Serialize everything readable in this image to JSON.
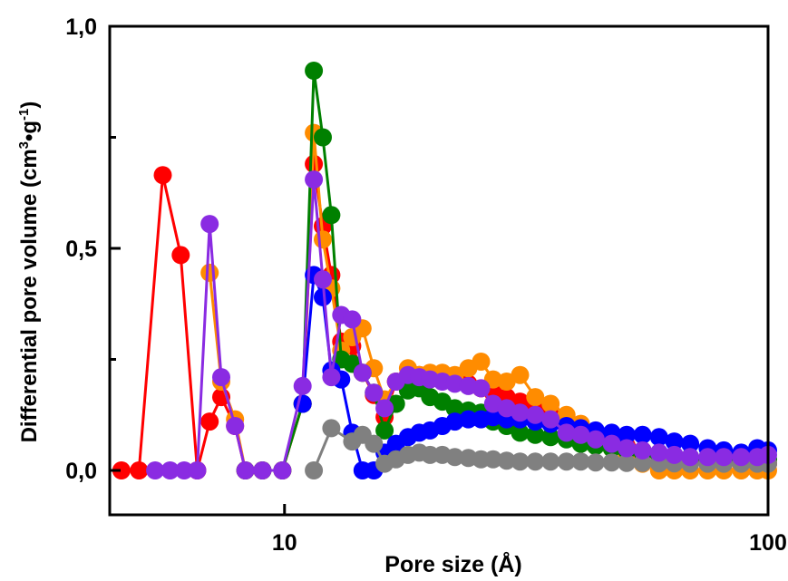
{
  "chart_data": {
    "type": "line",
    "title": "",
    "xlabel": "Pore size (Å)",
    "ylabel_parts": {
      "pre": "Differential pore volume (cm",
      "sup1": "3",
      "mid": "•g",
      "sup2": "-1",
      "post": ")"
    },
    "x_scale": "log",
    "xlim": [
      4.35,
      100
    ],
    "ylim": [
      -0.1,
      1.0
    ],
    "x_ticks": [
      {
        "value": 10,
        "label": "10"
      },
      {
        "value": 100,
        "label": "100"
      }
    ],
    "y_ticks": [
      {
        "value": 0.0,
        "label": "0,0"
      },
      {
        "value": 0.5,
        "label": "0,5"
      },
      {
        "value": 1.0,
        "label": "1,0"
      }
    ],
    "y_minor_ticks": [
      0.25,
      0.75
    ],
    "grid": false,
    "legend": "none",
    "series": [
      {
        "color": "#ff0000",
        "points": [
          [
            4.6,
            0
          ],
          [
            5.0,
            0
          ],
          [
            5.6,
            0.665
          ],
          [
            6.1,
            0.485
          ],
          [
            6.6,
            0
          ],
          [
            7.0,
            0.11
          ],
          [
            7.4,
            0.165
          ],
          [
            7.9,
            0.1
          ],
          [
            8.3,
            0
          ],
          [
            9.0,
            0
          ],
          [
            9.9,
            0
          ],
          [
            10.9,
            0.15
          ],
          [
            11.5,
            0.69
          ],
          [
            12.0,
            0.55
          ],
          [
            12.5,
            0.44
          ],
          [
            13.1,
            0.29
          ],
          [
            13.8,
            0.28
          ],
          [
            14.5,
            0.22
          ],
          [
            15.3,
            0.17
          ],
          [
            16.1,
            0.12
          ],
          [
            17.0,
            0.2
          ],
          [
            18.0,
            0.215
          ],
          [
            19.0,
            0.215
          ],
          [
            20.0,
            0.21
          ],
          [
            21.2,
            0.21
          ],
          [
            22.5,
            0.2
          ],
          [
            24.0,
            0.195
          ],
          [
            25.5,
            0.185
          ],
          [
            27.0,
            0.175
          ],
          [
            28.8,
            0.165
          ],
          [
            30.7,
            0.155
          ],
          [
            33.0,
            0.145
          ],
          [
            35.5,
            0.135
          ],
          [
            38.3,
            0.12
          ],
          [
            41.0,
            0.1
          ],
          [
            44.0,
            0.085
          ],
          [
            47.5,
            0.07
          ],
          [
            51.0,
            0.055
          ],
          [
            55.0,
            0.045
          ],
          [
            59.5,
            0.035
          ],
          [
            64.0,
            0.03
          ],
          [
            69.0,
            0.025
          ],
          [
            75.0,
            0.02
          ],
          [
            81.0,
            0.015
          ],
          [
            88.0,
            0.015
          ],
          [
            95.0,
            0.015
          ],
          [
            100,
            0.015
          ]
        ]
      },
      {
        "color": "#ff8c00",
        "points": [
          [
            7.0,
            0.445
          ],
          [
            7.4,
            0.2
          ],
          [
            7.9,
            0.115
          ],
          [
            8.3,
            0
          ],
          [
            9.0,
            0
          ],
          [
            9.9,
            0
          ],
          [
            10.9,
            0.15
          ],
          [
            11.5,
            0.76
          ],
          [
            12.0,
            0.52
          ],
          [
            12.5,
            0.41
          ],
          [
            13.1,
            0.27
          ],
          [
            13.8,
            0.3
          ],
          [
            14.5,
            0.32
          ],
          [
            15.3,
            0.23
          ],
          [
            16.1,
            0.16
          ],
          [
            17.0,
            0.2
          ],
          [
            18.0,
            0.23
          ],
          [
            19.0,
            0.215
          ],
          [
            20.0,
            0.22
          ],
          [
            21.2,
            0.22
          ],
          [
            22.5,
            0.215
          ],
          [
            24.0,
            0.23
          ],
          [
            25.5,
            0.245
          ],
          [
            27.0,
            0.205
          ],
          [
            28.8,
            0.2
          ],
          [
            30.7,
            0.215
          ],
          [
            33.0,
            0.165
          ],
          [
            35.5,
            0.15
          ],
          [
            38.3,
            0.125
          ],
          [
            41.0,
            0.105
          ],
          [
            44.0,
            0.08
          ],
          [
            47.5,
            0.05
          ],
          [
            51.0,
            0.03
          ],
          [
            55.0,
            0.015
          ],
          [
            59.5,
            0
          ],
          [
            64.0,
            0
          ],
          [
            69.0,
            0
          ],
          [
            75.0,
            0
          ],
          [
            81.0,
            0
          ],
          [
            88.0,
            0
          ],
          [
            95.0,
            0
          ],
          [
            100,
            0
          ]
        ]
      },
      {
        "color": "#008000",
        "points": [
          [
            8.3,
            0
          ],
          [
            9.0,
            0
          ],
          [
            9.9,
            0
          ],
          [
            10.9,
            0.15
          ],
          [
            11.5,
            0.9
          ],
          [
            12.0,
            0.75
          ],
          [
            12.5,
            0.575
          ],
          [
            13.1,
            0.25
          ],
          [
            13.8,
            0.24
          ],
          [
            14.5,
            0.22
          ],
          [
            15.3,
            0.175
          ],
          [
            16.1,
            0.09
          ],
          [
            17.0,
            0.15
          ],
          [
            18.0,
            0.18
          ],
          [
            19.0,
            0.185
          ],
          [
            20.0,
            0.165
          ],
          [
            21.2,
            0.155
          ],
          [
            22.5,
            0.14
          ],
          [
            24.0,
            0.135
          ],
          [
            25.5,
            0.13
          ],
          [
            27.0,
            0.11
          ],
          [
            28.8,
            0.1
          ],
          [
            30.7,
            0.085
          ],
          [
            33.0,
            0.08
          ],
          [
            35.5,
            0.075
          ],
          [
            38.3,
            0.07
          ],
          [
            41.0,
            0.06
          ],
          [
            44.0,
            0.055
          ],
          [
            47.5,
            0.05
          ],
          [
            51.0,
            0.045
          ],
          [
            55.0,
            0.04
          ],
          [
            59.5,
            0.035
          ],
          [
            64.0,
            0.03
          ],
          [
            69.0,
            0.03
          ],
          [
            75.0,
            0.025
          ],
          [
            81.0,
            0.025
          ],
          [
            88.0,
            0.025
          ],
          [
            95.0,
            0.025
          ],
          [
            100,
            0.025
          ]
        ]
      },
      {
        "color": "#0000ff",
        "points": [
          [
            10.9,
            0.15
          ],
          [
            11.5,
            0.44
          ],
          [
            12.0,
            0.39
          ],
          [
            12.5,
            0.225
          ],
          [
            13.1,
            0.205
          ],
          [
            13.8,
            0.085
          ],
          [
            14.5,
            0
          ],
          [
            15.3,
            0
          ],
          [
            16.1,
            0.04
          ],
          [
            17.0,
            0.06
          ],
          [
            18.0,
            0.075
          ],
          [
            19.0,
            0.085
          ],
          [
            20.0,
            0.09
          ],
          [
            21.2,
            0.1
          ],
          [
            22.5,
            0.11
          ],
          [
            24.0,
            0.115
          ],
          [
            25.5,
            0.115
          ],
          [
            27.0,
            0.12
          ],
          [
            28.8,
            0.115
          ],
          [
            30.7,
            0.115
          ],
          [
            33.0,
            0.11
          ],
          [
            35.5,
            0.105
          ],
          [
            38.3,
            0.1
          ],
          [
            41.0,
            0.095
          ],
          [
            44.0,
            0.09
          ],
          [
            47.5,
            0.085
          ],
          [
            51.0,
            0.08
          ],
          [
            55.0,
            0.08
          ],
          [
            59.5,
            0.075
          ],
          [
            64.0,
            0.065
          ],
          [
            69.0,
            0.06
          ],
          [
            75.0,
            0.05
          ],
          [
            81.0,
            0.045
          ],
          [
            88.0,
            0.04
          ],
          [
            95.0,
            0.05
          ],
          [
            100,
            0.045
          ]
        ]
      },
      {
        "color": "#808080",
        "points": [
          [
            11.5,
            0
          ],
          [
            12.5,
            0.095
          ],
          [
            13.8,
            0.065
          ],
          [
            14.5,
            0.08
          ],
          [
            15.3,
            0.06
          ],
          [
            16.1,
            0.015
          ],
          [
            17.0,
            0.025
          ],
          [
            18.0,
            0.035
          ],
          [
            19.0,
            0.04
          ],
          [
            20.0,
            0.035
          ],
          [
            21.2,
            0.035
          ],
          [
            22.5,
            0.03
          ],
          [
            24.0,
            0.028
          ],
          [
            25.5,
            0.025
          ],
          [
            27.0,
            0.025
          ],
          [
            28.8,
            0.022
          ],
          [
            30.7,
            0.02
          ],
          [
            33.0,
            0.02
          ],
          [
            35.5,
            0.02
          ],
          [
            38.3,
            0.02
          ],
          [
            41.0,
            0.02
          ],
          [
            44.0,
            0.018
          ],
          [
            47.5,
            0.018
          ],
          [
            51.0,
            0.017
          ],
          [
            55.0,
            0.017
          ],
          [
            59.5,
            0.016
          ],
          [
            64.0,
            0.016
          ],
          [
            69.0,
            0.015
          ],
          [
            75.0,
            0.015
          ],
          [
            81.0,
            0.015
          ],
          [
            88.0,
            0.015
          ],
          [
            95.0,
            0.015
          ],
          [
            100,
            0.015
          ]
        ]
      },
      {
        "color": "#8a2be2",
        "points": [
          [
            5.4,
            0
          ],
          [
            5.8,
            0
          ],
          [
            6.2,
            0
          ],
          [
            6.6,
            0
          ],
          [
            7.0,
            0.555
          ],
          [
            7.4,
            0.21
          ],
          [
            7.9,
            0.1
          ],
          [
            8.3,
            0
          ],
          [
            9.0,
            0
          ],
          [
            9.9,
            0
          ],
          [
            10.9,
            0.19
          ],
          [
            11.5,
            0.655
          ],
          [
            12.0,
            0.43
          ],
          [
            12.5,
            0.21
          ],
          [
            13.1,
            0.35
          ],
          [
            13.8,
            0.34
          ],
          [
            14.5,
            0.22
          ],
          [
            15.3,
            0.175
          ],
          [
            16.1,
            0.14
          ],
          [
            17.0,
            0.2
          ],
          [
            18.0,
            0.215
          ],
          [
            19.0,
            0.21
          ],
          [
            20.0,
            0.205
          ],
          [
            21.2,
            0.2
          ],
          [
            22.5,
            0.195
          ],
          [
            24.0,
            0.19
          ],
          [
            25.5,
            0.185
          ],
          [
            27.0,
            0.15
          ],
          [
            28.8,
            0.14
          ],
          [
            30.7,
            0.13
          ],
          [
            33.0,
            0.125
          ],
          [
            35.5,
            0.115
          ],
          [
            38.3,
            0.085
          ],
          [
            41.0,
            0.08
          ],
          [
            44.0,
            0.07
          ],
          [
            47.5,
            0.06
          ],
          [
            51.0,
            0.05
          ],
          [
            55.0,
            0.045
          ],
          [
            59.5,
            0.04
          ],
          [
            64.0,
            0.035
          ],
          [
            69.0,
            0.03
          ],
          [
            75.0,
            0.03
          ],
          [
            81.0,
            0.03
          ],
          [
            88.0,
            0.03
          ],
          [
            95.0,
            0.03
          ],
          [
            100,
            0.035
          ]
        ]
      }
    ]
  }
}
